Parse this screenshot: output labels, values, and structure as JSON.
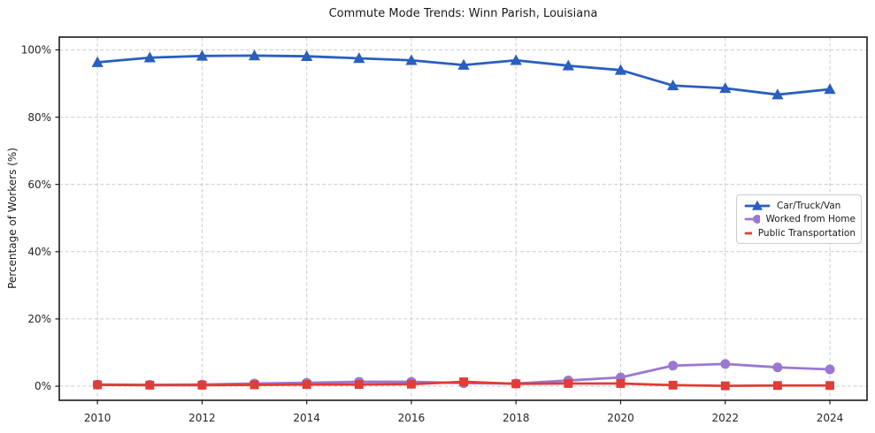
{
  "chart_data": {
    "type": "line",
    "title": "Commute Mode Trends: Winn Parish, Louisiana",
    "xlabel": "",
    "ylabel": "Percentage of Workers (%)",
    "x": [
      2010,
      2011,
      2012,
      2013,
      2014,
      2015,
      2016,
      2017,
      2018,
      2019,
      2020,
      2021,
      2022,
      2023,
      2024
    ],
    "xtick_values": [
      2010,
      2012,
      2014,
      2016,
      2018,
      2020,
      2022,
      2024
    ],
    "xtick_labels": [
      "2010",
      "2012",
      "2014",
      "2016",
      "2018",
      "2020",
      "2022",
      "2024"
    ],
    "ytick_values": [
      0,
      20,
      40,
      60,
      80,
      100
    ],
    "ytick_labels": [
      "0%",
      "20%",
      "40%",
      "60%",
      "80%",
      "100%"
    ],
    "xlim": [
      2009.27,
      2024.71
    ],
    "ylim": [
      -4.2,
      103.8
    ],
    "grid": true,
    "grid_style": "dashed",
    "grid_color": "#cccccc",
    "spine_color": "#1a1a1a",
    "legend_position": "center-right",
    "series": [
      {
        "id": "car-truck-van",
        "name": "Car/Truck/Van",
        "color": "#2a5fbe",
        "marker": "triangle",
        "values": [
          96.3,
          97.7,
          98.2,
          98.3,
          98.1,
          97.5,
          96.9,
          95.5,
          96.9,
          95.3,
          94.0,
          89.4,
          88.6,
          86.7,
          88.3
        ]
      },
      {
        "id": "worked-from-home",
        "name": "Worked from Home",
        "color": "#9a78d2",
        "marker": "circle",
        "values": [
          0.5,
          0.4,
          0.5,
          0.8,
          1.0,
          1.3,
          1.3,
          0.9,
          0.8,
          1.7,
          2.6,
          6.1,
          6.6,
          5.6,
          5.0
        ]
      },
      {
        "id": "public-transportation",
        "name": "Public Transportation",
        "color": "#e13c35",
        "marker": "square",
        "values": [
          0.4,
          0.3,
          0.3,
          0.4,
          0.5,
          0.5,
          0.6,
          1.3,
          0.7,
          0.8,
          0.8,
          0.3,
          0.1,
          0.2,
          0.2
        ]
      }
    ]
  }
}
